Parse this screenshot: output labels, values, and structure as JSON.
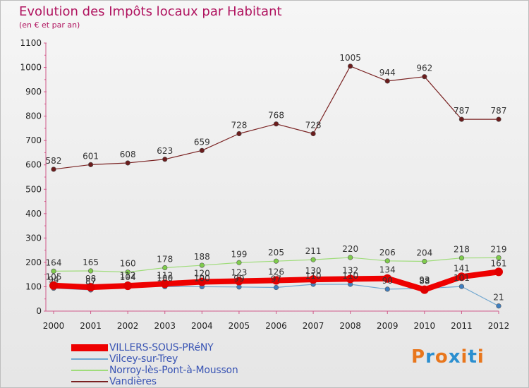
{
  "title": "Evolution des Impôts locaux par Habitant",
  "subtitle": "(en € et par an)",
  "logo": {
    "letters": [
      "P",
      "r",
      "o",
      "x",
      "i",
      "t",
      "i"
    ],
    "colors": [
      "#e8761c",
      "#2b8fd0",
      "#e8761c",
      "#2b8fd0",
      "#e8761c",
      "#2b8fd0",
      "#e8761c"
    ]
  },
  "chart_data": {
    "type": "line",
    "x": [
      "2000",
      "2001",
      "2002",
      "2003",
      "2004",
      "2005",
      "2006",
      "2007",
      "2008",
      "2009",
      "2010",
      "2011",
      "2012"
    ],
    "ylim": [
      0,
      1100
    ],
    "yticks": [
      "0",
      "100",
      "200",
      "300",
      "400",
      "500",
      "600",
      "700",
      "800",
      "900",
      "1000",
      "1100"
    ],
    "grid": false,
    "legend_position": "bottom",
    "series": [
      {
        "name": "Vandières",
        "color": "#7a2222",
        "width": 1.2,
        "marker": "#6b1c1c",
        "values": [
          582,
          601,
          608,
          623,
          659,
          728,
          768,
          728,
          1005,
          944,
          962,
          787,
          787
        ],
        "labels": [
          "582",
          "601",
          "608",
          "623",
          "659",
          "728",
          "768",
          "728",
          "1005",
          "944",
          "962",
          "787",
          "787"
        ]
      },
      {
        "name": "Norroy-lès-Pont-à-Mousson",
        "color": "#9fdc7a",
        "width": 1.2,
        "marker": "#7fcc4c",
        "values": [
          164,
          165,
          160,
          178,
          188,
          199,
          205,
          211,
          220,
          206,
          204,
          218,
          219
        ],
        "labels": [
          "164",
          "165",
          "160",
          "178",
          "188",
          "199",
          "205",
          "211",
          "220",
          "206",
          "204",
          "218",
          "219"
        ]
      },
      {
        "name": "Vilcey-sur-Trey",
        "color": "#6fa6cf",
        "width": 1.2,
        "marker": "#3f7fc0",
        "values": [
          94,
          87,
          112,
          100,
          100,
          99,
          97,
          110,
          110,
          90,
          93,
          101,
          21
        ],
        "labels": [
          "94",
          "87",
          "112",
          "100",
          "100",
          "99",
          "97",
          "110",
          "110",
          "90",
          "93",
          "101",
          "21"
        ]
      },
      {
        "name": "VILLERS-SOUS-PRéNY",
        "color": "#ee0000",
        "width": 8,
        "marker": "#e00000",
        "values": [
          105,
          98,
          104,
          112,
          120,
          123,
          126,
          130,
          132,
          134,
          88,
          141,
          161
        ],
        "labels": [
          "105",
          "98",
          "104",
          "112",
          "120",
          "123",
          "126",
          "130",
          "132",
          "134",
          "88",
          "141",
          "161"
        ]
      }
    ]
  },
  "legend": [
    {
      "label": "VILLERS-SOUS-PRéNY",
      "color": "#ee0000",
      "thickness": 10
    },
    {
      "label": "Vilcey-sur-Trey",
      "color": "#6fa6cf",
      "thickness": 2
    },
    {
      "label": "Norroy-lès-Pont-à-Mousson",
      "color": "#9fdc7a",
      "thickness": 2
    },
    {
      "label": "Vandières",
      "color": "#7a2222",
      "thickness": 2
    }
  ]
}
